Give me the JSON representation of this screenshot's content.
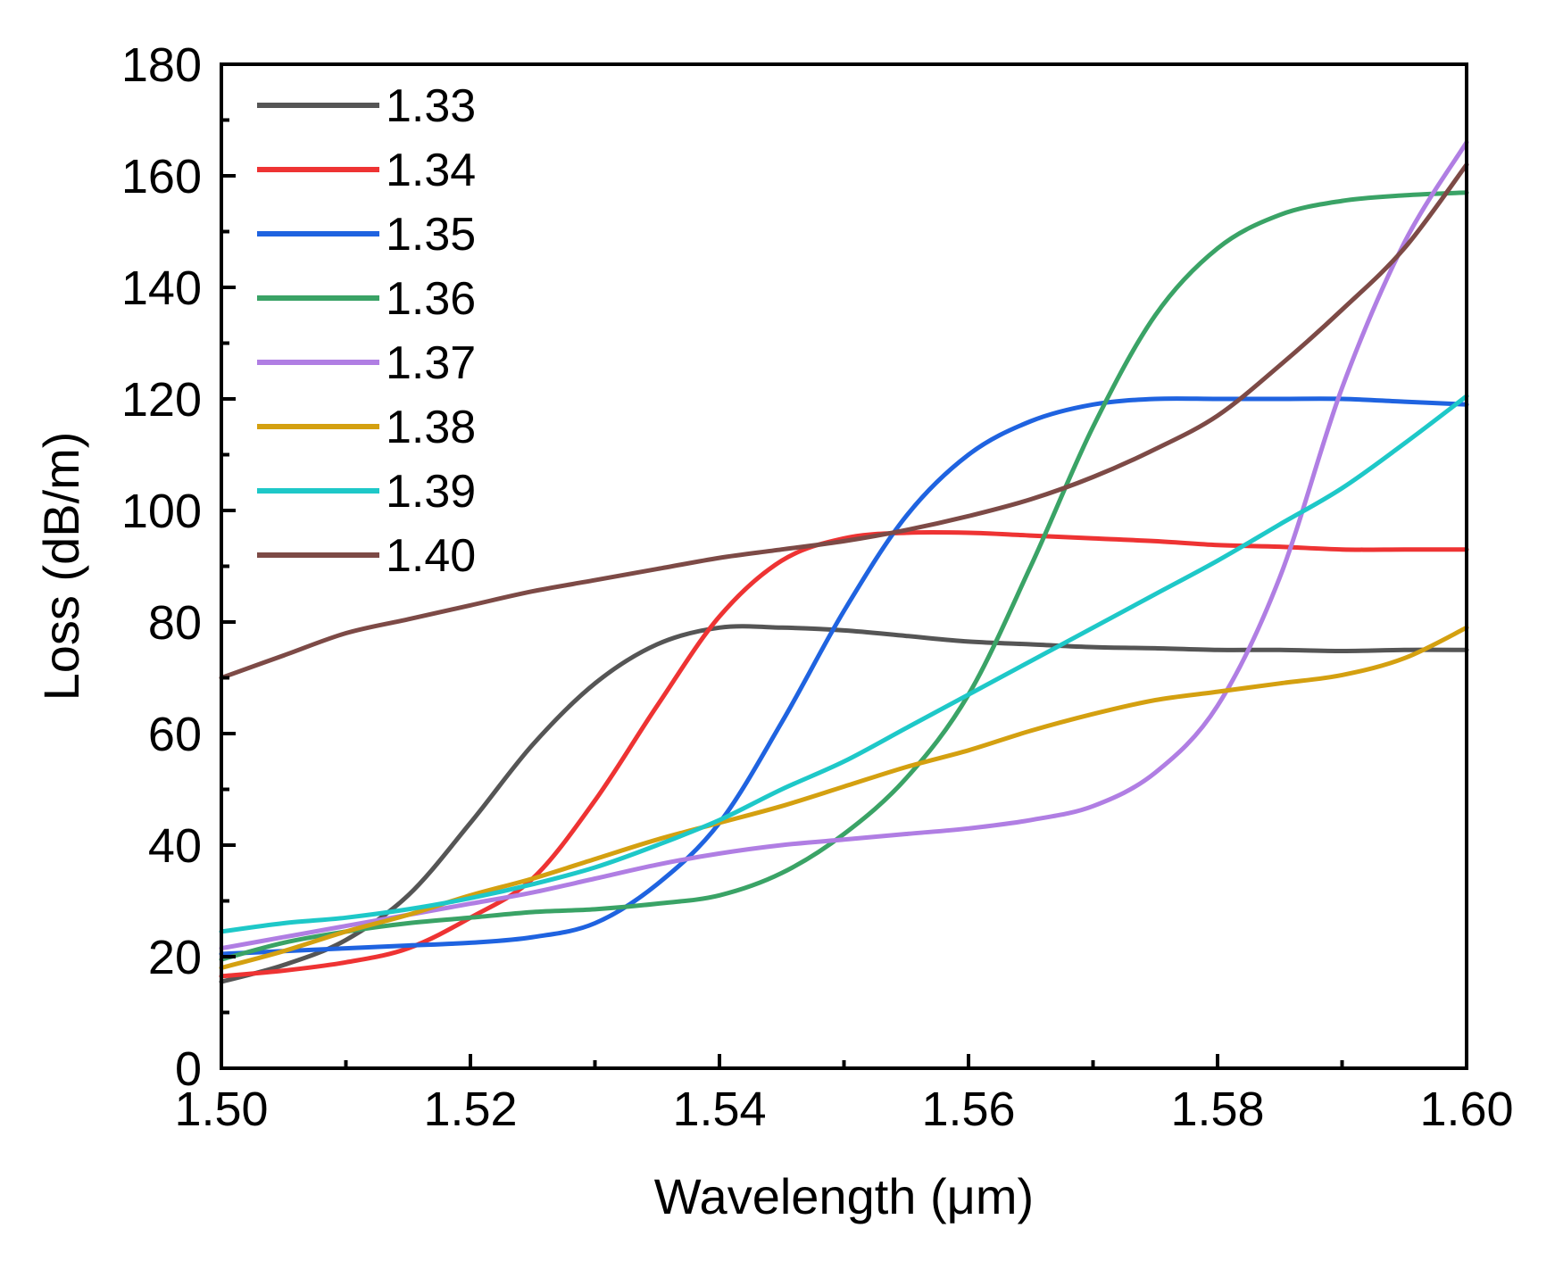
{
  "chart_data": {
    "type": "line",
    "title": "",
    "xlabel": "Wavelength (μm)",
    "ylabel": "Loss (dB/m)",
    "xlim": [
      1.5,
      1.6
    ],
    "ylim": [
      0,
      180
    ],
    "x_ticks": [
      "1.50",
      "1.52",
      "1.54",
      "1.56",
      "1.58",
      "1.60"
    ],
    "y_ticks": [
      "0",
      "20",
      "40",
      "60",
      "80",
      "100",
      "120",
      "140",
      "160",
      "180"
    ],
    "grid": false,
    "legend_position": "top-left",
    "x": [
      1.5,
      1.505,
      1.51,
      1.515,
      1.52,
      1.525,
      1.53,
      1.535,
      1.54,
      1.545,
      1.55,
      1.555,
      1.56,
      1.565,
      1.57,
      1.575,
      1.58,
      1.585,
      1.59,
      1.595,
      1.6
    ],
    "series": [
      {
        "name": "1.33",
        "color": "#555555",
        "values": [
          15.5,
          18.5,
          23,
          31,
          44,
          58,
          69,
          76,
          79,
          79,
          78.5,
          77.5,
          76.5,
          76,
          75.5,
          75.3,
          75,
          75,
          74.8,
          75,
          75
        ]
      },
      {
        "name": "1.34",
        "color": "#ee3333",
        "values": [
          16.5,
          17.5,
          19,
          21.5,
          27,
          34,
          48,
          65,
          81,
          91,
          95,
          96,
          96,
          95.5,
          95,
          94.5,
          93.8,
          93.5,
          93,
          93,
          93
        ]
      },
      {
        "name": "1.35",
        "color": "#1f63e0",
        "values": [
          20.5,
          21,
          21.5,
          22,
          22.5,
          23.5,
          26,
          33,
          44,
          62,
          82,
          99,
          110,
          116,
          119,
          120,
          120,
          120,
          120,
          119.5,
          119
        ]
      },
      {
        "name": "1.36",
        "color": "#3aa366",
        "values": [
          19.5,
          22.5,
          24.5,
          26,
          27,
          28,
          28.5,
          29.5,
          31,
          35,
          42,
          52,
          67,
          90,
          115,
          135,
          147,
          153,
          155.5,
          156.5,
          157
        ]
      },
      {
        "name": "1.37",
        "color": "#b07ee3",
        "values": [
          21.5,
          23.5,
          25.5,
          27.5,
          29.5,
          31.5,
          34,
          36.5,
          38.5,
          40,
          41,
          42,
          43,
          44.5,
          47,
          53,
          65,
          88,
          122,
          148,
          166
        ]
      },
      {
        "name": "1.38",
        "color": "#d4a010",
        "values": [
          18,
          21,
          24.5,
          27.5,
          31,
          34,
          37.5,
          41,
          44,
          47,
          50.5,
          54,
          57,
          60.5,
          63.5,
          66,
          67.5,
          69,
          70.5,
          73.5,
          79
        ]
      },
      {
        "name": "1.39",
        "color": "#1ec8c8",
        "values": [
          24.5,
          26,
          27,
          28.5,
          30.5,
          33,
          36,
          40,
          44.5,
          50,
          55,
          61,
          67,
          73,
          79,
          85,
          91,
          97.5,
          104,
          112,
          120.5
        ]
      },
      {
        "name": "1.40",
        "color": "#7d4a46",
        "values": [
          70,
          74,
          78,
          80.5,
          83,
          85.5,
          87.5,
          89.5,
          91.5,
          93,
          94.5,
          96.5,
          99,
          102,
          106,
          111,
          117,
          126,
          136,
          147,
          162
        ]
      }
    ]
  }
}
